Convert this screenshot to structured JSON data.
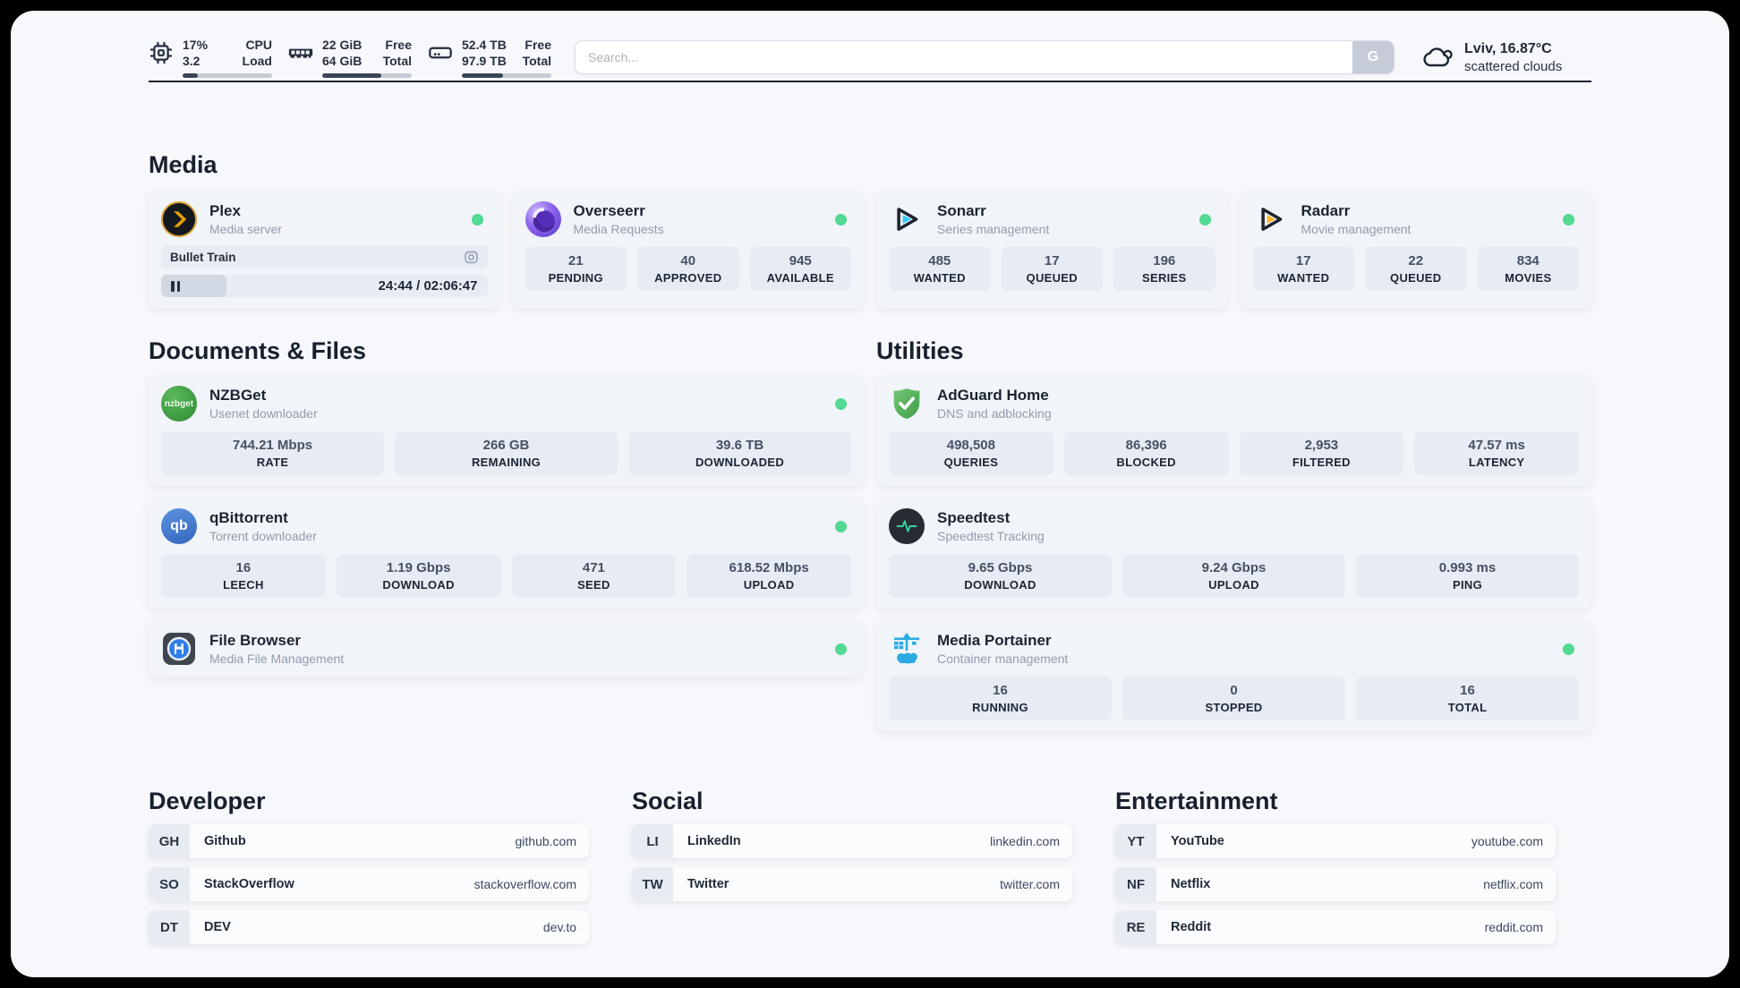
{
  "header": {
    "stats": [
      {
        "icon": "cpu",
        "value_line1": "17%",
        "label_line1": "CPU",
        "value_line2": "3.2",
        "label_line2": "Load",
        "progress_percent": 17
      },
      {
        "icon": "memory",
        "value_line1": "22 GiB",
        "label_line1": "Free",
        "value_line2": "64 GiB",
        "label_line2": "Total",
        "progress_percent": 66
      },
      {
        "icon": "disk",
        "value_line1": "52.4 TB",
        "label_line1": "Free",
        "value_line2": "97.9 TB",
        "label_line2": "Total",
        "progress_percent": 46
      }
    ],
    "search": {
      "placeholder": "Search...",
      "button_label": "G"
    },
    "weather": {
      "location_temp": "Lviv, 16.87°C",
      "condition": "scattered clouds"
    }
  },
  "sections": {
    "media": "Media",
    "documents": "Documents & Files",
    "utilities": "Utilities",
    "developer": "Developer",
    "social": "Social",
    "entertainment": "Entertainment"
  },
  "media_apps": {
    "plex": {
      "name": "Plex",
      "description": "Media server",
      "now_playing_title": "Bullet Train",
      "time_display": "24:44 / 02:06:47",
      "progress_percent": 20
    },
    "overseerr": {
      "name": "Overseerr",
      "description": "Media Requests",
      "stats": [
        {
          "value": "21",
          "label": "PENDING"
        },
        {
          "value": "40",
          "label": "APPROVED"
        },
        {
          "value": "945",
          "label": "AVAILABLE"
        }
      ]
    },
    "sonarr": {
      "name": "Sonarr",
      "description": "Series management",
      "stats": [
        {
          "value": "485",
          "label": "WANTED"
        },
        {
          "value": "17",
          "label": "QUEUED"
        },
        {
          "value": "196",
          "label": "SERIES"
        }
      ]
    },
    "radarr": {
      "name": "Radarr",
      "description": "Movie management",
      "stats": [
        {
          "value": "17",
          "label": "WANTED"
        },
        {
          "value": "22",
          "label": "QUEUED"
        },
        {
          "value": "834",
          "label": "MOVIES"
        }
      ]
    }
  },
  "documents_apps": {
    "nzbget": {
      "name": "NZBGet",
      "description": "Usenet downloader",
      "icon_text": "nzbget",
      "stats": [
        {
          "value": "744.21 Mbps",
          "label": "RATE"
        },
        {
          "value": "266 GB",
          "label": "REMAINING"
        },
        {
          "value": "39.6 TB",
          "label": "DOWNLOADED"
        }
      ]
    },
    "qbittorrent": {
      "name": "qBittorrent",
      "description": "Torrent downloader",
      "icon_text": "qb",
      "stats": [
        {
          "value": "16",
          "label": "LEECH"
        },
        {
          "value": "1.19 Gbps",
          "label": "DOWNLOAD"
        },
        {
          "value": "471",
          "label": "SEED"
        },
        {
          "value": "618.52 Mbps",
          "label": "UPLOAD"
        }
      ]
    },
    "filebrowser": {
      "name": "File Browser",
      "description": "Media File Management"
    }
  },
  "utilities_apps": {
    "adguard": {
      "name": "AdGuard Home",
      "description": "DNS and adblocking",
      "stats": [
        {
          "value": "498,508",
          "label": "QUERIES"
        },
        {
          "value": "86,396",
          "label": "BLOCKED"
        },
        {
          "value": "2,953",
          "label": "FILTERED"
        },
        {
          "value": "47.57 ms",
          "label": "LATENCY"
        }
      ]
    },
    "speedtest": {
      "name": "Speedtest",
      "description": "Speedtest Tracking",
      "stats": [
        {
          "value": "9.65 Gbps",
          "label": "DOWNLOAD"
        },
        {
          "value": "9.24 Gbps",
          "label": "UPLOAD"
        },
        {
          "value": "0.993 ms",
          "label": "PING"
        }
      ]
    },
    "portainer": {
      "name": "Media Portainer",
      "description": "Container management",
      "stats": [
        {
          "value": "16",
          "label": "RUNNING"
        },
        {
          "value": "0",
          "label": "STOPPED"
        },
        {
          "value": "16",
          "label": "TOTAL"
        }
      ]
    }
  },
  "bookmarks": {
    "developer": [
      {
        "abbr": "GH",
        "name": "Github",
        "url": "github.com"
      },
      {
        "abbr": "SO",
        "name": "StackOverflow",
        "url": "stackoverflow.com"
      },
      {
        "abbr": "DT",
        "name": "DEV",
        "url": "dev.to"
      }
    ],
    "social": [
      {
        "abbr": "LI",
        "name": "LinkedIn",
        "url": "linkedin.com"
      },
      {
        "abbr": "TW",
        "name": "Twitter",
        "url": "twitter.com"
      }
    ],
    "entertainment": [
      {
        "abbr": "YT",
        "name": "YouTube",
        "url": "youtube.com"
      },
      {
        "abbr": "NF",
        "name": "Netflix",
        "url": "netflix.com"
      },
      {
        "abbr": "RE",
        "name": "Reddit",
        "url": "reddit.com"
      }
    ]
  },
  "colors": {
    "status_online": "#52d992",
    "plex_amber": "#e5a00d",
    "sonarr_blue": "#36c6f4",
    "radarr_orange": "#ffb937",
    "adguard_green": "#5bb85f",
    "qbittorrent_blue": "#4079d0",
    "filebrowser_blue": "#2f7fe8",
    "portainer_blue": "#2aabe2",
    "progress_fill": "#3b4557"
  }
}
